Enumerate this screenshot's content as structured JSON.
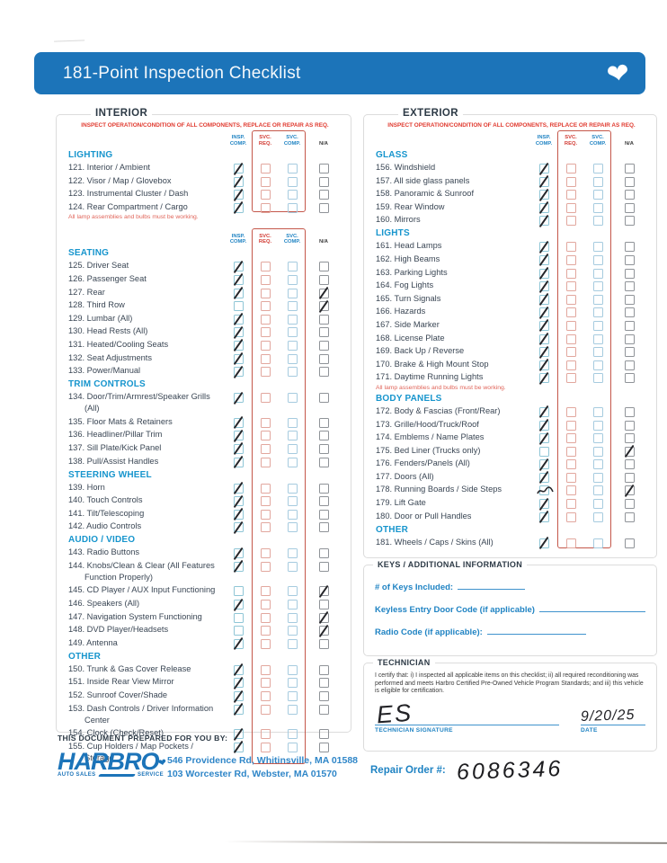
{
  "banner": {
    "title": "181-Point Inspection Checklist",
    "color": "#1c74b9"
  },
  "colheaders": [
    {
      "l1": "INSP.",
      "l2": "COMP.",
      "color": "blue"
    },
    {
      "l1": "SVC.",
      "l2": "REQ.",
      "color": "red"
    },
    {
      "l1": "SVC.",
      "l2": "COMP.",
      "color": "blue"
    },
    {
      "l1": "N/A",
      "l2": "",
      "color": "dark"
    }
  ],
  "interior": {
    "title": "INTERIOR",
    "subtitle": "INSPECT OPERATION/CONDITION OF ALL COMPONENTS, REPLACE OR REPAIR AS REQ.",
    "zones": [
      {
        "colheader": true,
        "redbox_bottom": 13,
        "groups": [
          {
            "name": "LIGHTING",
            "note": "All lamp assemblies and bulbs must be working.",
            "items": [
              {
                "n": "121.",
                "t": "Interior / Ambient",
                "m": [
                  "insp"
                ]
              },
              {
                "n": "122.",
                "t": "Visor / Map / Glovebox",
                "m": [
                  "insp"
                ]
              },
              {
                "n": "123.",
                "t": "Instrumental Cluster / Dash",
                "m": [
                  "insp"
                ]
              },
              {
                "n": "124.",
                "t": "Rear Compartment / Cargo",
                "m": [
                  "insp"
                ]
              }
            ]
          }
        ]
      },
      {
        "colheader": true,
        "groups": [
          {
            "name": "SEATING",
            "items": [
              {
                "n": "125.",
                "t": "Driver Seat",
                "m": [
                  "insp"
                ]
              },
              {
                "n": "126.",
                "t": "Passenger Seat",
                "m": [
                  "insp"
                ]
              },
              {
                "n": "127.",
                "t": "Rear",
                "m": [
                  "insp",
                  "na"
                ]
              },
              {
                "n": "128.",
                "t": "Third Row",
                "m": [
                  "na"
                ]
              },
              {
                "n": "129.",
                "t": "Lumbar (All)",
                "m": [
                  "insp"
                ]
              },
              {
                "n": "130.",
                "t": "Head Rests (All)",
                "m": [
                  "insp"
                ]
              },
              {
                "n": "131.",
                "t": "Heated/Cooling Seats",
                "m": [
                  "insp"
                ]
              },
              {
                "n": "132.",
                "t": "Seat Adjustments",
                "m": [
                  "insp"
                ]
              },
              {
                "n": "133.",
                "t": "Power/Manual",
                "m": [
                  "insp"
                ]
              }
            ]
          },
          {
            "name": "TRIM CONTROLS",
            "items": [
              {
                "n": "134.",
                "t": "Door/Trim/Armrest/Speaker Grills (All)",
                "m": [
                  "insp"
                ]
              },
              {
                "n": "135.",
                "t": "Floor Mats & Retainers",
                "m": [
                  "insp"
                ]
              },
              {
                "n": "136.",
                "t": "Headliner/Pillar Trim",
                "m": [
                  "insp"
                ]
              },
              {
                "n": "137.",
                "t": "Sill Plate/Kick Panel",
                "m": [
                  "insp"
                ]
              },
              {
                "n": "138.",
                "t": "Pull/Assist Handles",
                "m": [
                  "insp"
                ]
              }
            ]
          },
          {
            "name": "STEERING WHEEL",
            "items": [
              {
                "n": "139.",
                "t": "Horn",
                "m": [
                  "insp"
                ]
              },
              {
                "n": "140.",
                "t": "Touch Controls",
                "m": [
                  "insp"
                ]
              },
              {
                "n": "141.",
                "t": "Tilt/Telescoping",
                "m": [
                  "insp"
                ]
              },
              {
                "n": "142.",
                "t": "Audio Controls",
                "m": [
                  "insp"
                ]
              }
            ]
          },
          {
            "name": "AUDIO / VIDEO",
            "items": [
              {
                "n": "143.",
                "t": "Radio Buttons",
                "m": [
                  "insp"
                ]
              },
              {
                "n": "144.",
                "t": "Knobs/Clean & Clear (All Features Function Properly)",
                "m": [
                  "insp"
                ]
              },
              {
                "n": "145.",
                "t": "CD Player / AUX Input Functioning",
                "m": [
                  "na"
                ]
              },
              {
                "n": "146.",
                "t": "Speakers (All)",
                "m": [
                  "insp"
                ]
              },
              {
                "n": "147.",
                "t": "Navigation System Functioning",
                "m": [
                  "na"
                ]
              },
              {
                "n": "148.",
                "t": "DVD Player/Headsets",
                "m": [
                  "na"
                ]
              },
              {
                "n": "149.",
                "t": "Antenna",
                "m": [
                  "insp"
                ]
              }
            ]
          },
          {
            "name": "OTHER",
            "items": [
              {
                "n": "150.",
                "t": "Trunk & Gas Cover Release",
                "m": [
                  "insp"
                ]
              },
              {
                "n": "151.",
                "t": "Inside Rear View Mirror",
                "m": [
                  "insp"
                ]
              },
              {
                "n": "152.",
                "t": "Sunroof Cover/Shade",
                "m": [
                  "insp"
                ]
              },
              {
                "n": "153.",
                "t": "Dash Controls / Driver Information Center",
                "m": [
                  "insp"
                ]
              },
              {
                "n": "154.",
                "t": "Clock (Check/Reset)",
                "m": [
                  "insp"
                ]
              },
              {
                "n": "155.",
                "t": "Cup Holders / Map Pockets / Storage",
                "m": [
                  "insp"
                ]
              }
            ]
          }
        ]
      }
    ]
  },
  "exterior": {
    "title": "EXTERIOR",
    "subtitle": "INSPECT OPERATION/CONDITION OF ALL COMPONENTS, REPLACE OR REPAIR AS REQ.",
    "zones": [
      {
        "colheader": true,
        "groups": [
          {
            "name": "GLASS",
            "items": [
              {
                "n": "156.",
                "t": "Windshield",
                "m": [
                  "insp"
                ]
              },
              {
                "n": "157.",
                "t": "All side glass panels",
                "m": [
                  "insp"
                ]
              },
              {
                "n": "158.",
                "t": "Panoramic & Sunroof",
                "m": [
                  "insp"
                ]
              },
              {
                "n": "159.",
                "t": "Rear Window",
                "m": [
                  "insp"
                ]
              },
              {
                "n": "160.",
                "t": "Mirrors",
                "m": [
                  "insp"
                ]
              }
            ]
          },
          {
            "name": "LIGHTS",
            "note": "All lamp assemblies and bulbs must be working.",
            "items": [
              {
                "n": "161.",
                "t": "Head Lamps",
                "m": [
                  "insp"
                ]
              },
              {
                "n": "162.",
                "t": "High Beams",
                "m": [
                  "insp"
                ]
              },
              {
                "n": "163.",
                "t": "Parking Lights",
                "m": [
                  "insp"
                ]
              },
              {
                "n": "164.",
                "t": "Fog Lights",
                "m": [
                  "insp"
                ]
              },
              {
                "n": "165.",
                "t": "Turn Signals",
                "m": [
                  "insp"
                ]
              },
              {
                "n": "166.",
                "t": "Hazards",
                "m": [
                  "insp"
                ]
              },
              {
                "n": "167.",
                "t": "Side Marker",
                "m": [
                  "insp"
                ]
              },
              {
                "n": "168.",
                "t": "License Plate",
                "m": [
                  "insp"
                ]
              },
              {
                "n": "169.",
                "t": "Back Up / Reverse",
                "m": [
                  "insp"
                ]
              },
              {
                "n": "170.",
                "t": "Brake & High Mount Stop",
                "m": [
                  "insp"
                ]
              },
              {
                "n": "171.",
                "t": "Daytime Running Lights",
                "m": [
                  "insp"
                ]
              }
            ]
          },
          {
            "name": "BODY PANELS",
            "items": [
              {
                "n": "172.",
                "t": "Body & Fascias (Front/Rear)",
                "m": [
                  "insp"
                ]
              },
              {
                "n": "173.",
                "t": "Grille/Hood/Truck/Roof",
                "m": [
                  "insp"
                ]
              },
              {
                "n": "174.",
                "t": "Emblems / Name Plates",
                "m": [
                  "insp"
                ]
              },
              {
                "n": "175.",
                "t": "Bed Liner (Trucks only)",
                "m": [
                  "na"
                ]
              },
              {
                "n": "176.",
                "t": "Fenders/Panels (All)",
                "m": [
                  "insp"
                ]
              },
              {
                "n": "177.",
                "t": "Doors (All)",
                "m": [
                  "insp"
                ]
              },
              {
                "n": "178.",
                "t": "Running Boards / Side Steps",
                "m": [
                  "insp:scribble",
                  "na"
                ]
              },
              {
                "n": "179.",
                "t": "Lift Gate",
                "m": [
                  "insp"
                ]
              },
              {
                "n": "180.",
                "t": "Door or Pull Handles",
                "m": [
                  "insp"
                ]
              }
            ]
          },
          {
            "name": "OTHER",
            "items": [
              {
                "n": "181.",
                "t": "Wheels / Caps / Skins (All)",
                "m": [
                  "insp"
                ]
              }
            ]
          }
        ]
      }
    ]
  },
  "keys": {
    "title": "KEYS / ADDITIONAL INFORMATION",
    "fields": [
      {
        "label": "# of Keys Included:",
        "value": ""
      },
      {
        "label": "Keyless Entry Door Code (if applicable)",
        "value": ""
      },
      {
        "label": "Radio Code (if applicable):",
        "value": ""
      }
    ]
  },
  "technician": {
    "title": "TECHNICIAN",
    "certify": "I certify that: i) I inspected all applicable items on this checklist; ii) all required reconditioning was performed and meets Harbro Certified Pre-Owned Vehicle Program Standards; and iii) this vehicle is eligible for certification.",
    "signature_value": "ES",
    "signature_label": "TECHNICIAN SIGNATURE",
    "date_value": "9/20/25",
    "date_label": "DATE"
  },
  "footer": {
    "prepared": "THIS DOCUMENT PREPARED FOR YOU BY:",
    "logo": {
      "word": "HARBRO",
      "sub1": "AUTO SALES",
      "sub2": "SERVICE"
    },
    "address1": "546 Providence Rd, Whitinsville, MA 01588",
    "address2": "103 Worcester Rd, Webster, MA 01570"
  },
  "repair_order": {
    "label": "Repair Order #:",
    "value": "6086346"
  },
  "colors": {
    "banner_blue": "#1c74b9",
    "group_blue": "#1795cd",
    "label_blue": "#1f83c3",
    "alert_red": "#e03a2f",
    "svc_box_red": "#c4574a",
    "ink": "#26262a"
  }
}
